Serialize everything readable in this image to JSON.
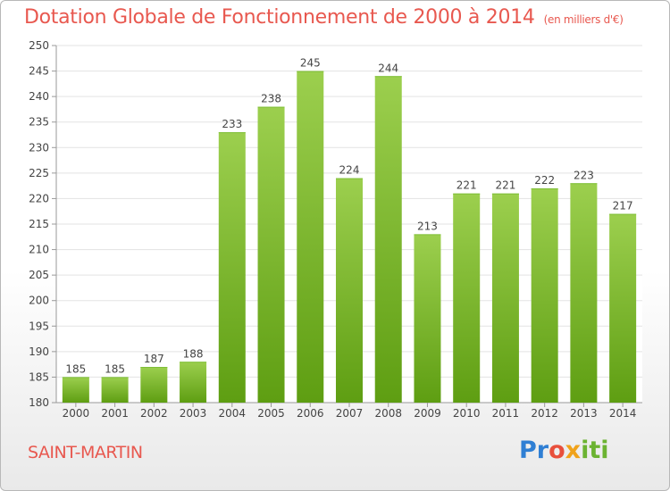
{
  "header": {
    "title": "Dotation Globale de Fonctionnement de 2000 à 2014",
    "subtitle": "(en milliers d'€)"
  },
  "footer": {
    "commune": "SAINT-MARTIN",
    "logo_parts": [
      "Pr",
      "o",
      "x",
      "i",
      "ti"
    ]
  },
  "colors": {
    "bar_top": "#9ccf4e",
    "bar_bottom": "#5e9e12",
    "title": "#e8584f"
  },
  "chart_data": {
    "type": "bar",
    "title": "Dotation Globale de Fonctionnement de 2000 à 2014",
    "subtitle": "(en milliers d'€)",
    "categories": [
      "2000",
      "2001",
      "2002",
      "2003",
      "2004",
      "2005",
      "2006",
      "2007",
      "2008",
      "2009",
      "2010",
      "2011",
      "2012",
      "2013",
      "2014"
    ],
    "values": [
      185,
      185,
      187,
      188,
      233,
      238,
      245,
      224,
      244,
      213,
      221,
      221,
      222,
      223,
      217
    ],
    "ylim": [
      180,
      250
    ],
    "yticks": [
      180,
      185,
      190,
      195,
      200,
      205,
      210,
      215,
      220,
      225,
      230,
      235,
      240,
      245,
      250
    ],
    "grid": true,
    "xlabel": "",
    "ylabel": ""
  }
}
